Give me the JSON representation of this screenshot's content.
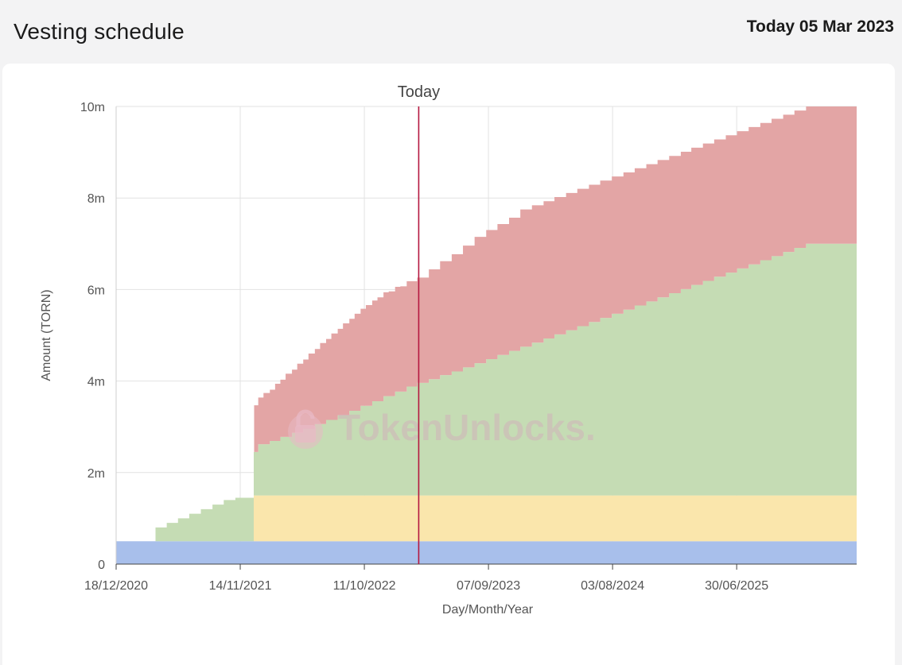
{
  "page": {
    "title": "Vesting schedule",
    "today_text": "Today 05 Mar 2023"
  },
  "watermark": "TokenUnlocks.",
  "chart_data": {
    "type": "area",
    "stacked": true,
    "step": true,
    "xlabel": "Day/Month/Year",
    "ylabel": "Amount (TORN)",
    "x_start": "2020-12-18",
    "x_end": "2026-05-16",
    "x_ticks": [
      "2020-12-18",
      "2021-11-14",
      "2022-10-11",
      "2023-09-07",
      "2024-08-03",
      "2025-06-30"
    ],
    "x_tick_labels": [
      "18/12/2020",
      "14/11/2021",
      "11/10/2022",
      "07/09/2023",
      "03/08/2024",
      "30/06/2025"
    ],
    "ylim": [
      0,
      10000000
    ],
    "y_ticks": [
      0,
      2000000,
      4000000,
      6000000,
      8000000,
      10000000
    ],
    "y_tick_labels": [
      "0",
      "2m",
      "4m",
      "6m",
      "8m",
      "10m"
    ],
    "grid": true,
    "legend": "none",
    "marker": {
      "date": "2023-03-05",
      "label": "Today",
      "color": "#b5173f"
    },
    "series": [
      {
        "color": "#a8bfeb",
        "points": [
          [
            "2020-12-18",
            500000
          ],
          [
            "2026-05-16",
            500000
          ]
        ]
      },
      {
        "color": "#fae6ac",
        "points": [
          [
            "2020-12-18",
            0
          ],
          [
            "2021-04-02",
            0
          ],
          [
            "2021-12-20",
            1000000
          ],
          [
            "2026-05-16",
            1000000
          ]
        ]
      },
      {
        "color": "#c5dcb4",
        "points": [
          [
            "2020-12-18",
            0
          ],
          [
            "2021-04-02",
            300000
          ],
          [
            "2021-05-02",
            400000
          ],
          [
            "2021-06-01",
            500000
          ],
          [
            "2021-07-01",
            600000
          ],
          [
            "2021-08-01",
            700000
          ],
          [
            "2021-09-01",
            800000
          ],
          [
            "2021-10-01",
            900000
          ],
          [
            "2021-11-01",
            950000
          ],
          [
            "2021-12-01",
            950000
          ],
          [
            "2022-01-01",
            1120000
          ],
          [
            "2022-02-01",
            1190000
          ],
          [
            "2022-03-01",
            1280000
          ],
          [
            "2022-04-01",
            1370000
          ],
          [
            "2022-05-01",
            1460000
          ],
          [
            "2022-06-01",
            1560000
          ],
          [
            "2022-07-01",
            1650000
          ],
          [
            "2022-08-01",
            1750000
          ],
          [
            "2022-09-01",
            1850000
          ],
          [
            "2022-10-01",
            1960000
          ],
          [
            "2022-11-01",
            2060000
          ],
          [
            "2022-12-01",
            2170000
          ],
          [
            "2023-01-01",
            2270000
          ],
          [
            "2023-02-01",
            2380000
          ],
          [
            "2023-03-01",
            2460000
          ],
          [
            "2023-04-01",
            2540000
          ],
          [
            "2023-05-01",
            2630000
          ],
          [
            "2023-06-01",
            2710000
          ],
          [
            "2023-07-01",
            2800000
          ],
          [
            "2023-08-01",
            2890000
          ],
          [
            "2023-09-01",
            2980000
          ],
          [
            "2023-10-01",
            3070000
          ],
          [
            "2023-11-01",
            3160000
          ],
          [
            "2023-12-01",
            3250000
          ],
          [
            "2024-01-01",
            3340000
          ],
          [
            "2024-02-01",
            3430000
          ],
          [
            "2024-03-01",
            3520000
          ],
          [
            "2024-04-01",
            3610000
          ],
          [
            "2024-05-01",
            3700000
          ],
          [
            "2024-06-01",
            3790000
          ],
          [
            "2024-07-01",
            3880000
          ],
          [
            "2024-08-01",
            3970000
          ],
          [
            "2024-09-01",
            4060000
          ],
          [
            "2024-10-01",
            4150000
          ],
          [
            "2024-11-01",
            4240000
          ],
          [
            "2024-12-01",
            4330000
          ],
          [
            "2025-01-01",
            4420000
          ],
          [
            "2025-02-01",
            4510000
          ],
          [
            "2025-03-01",
            4600000
          ],
          [
            "2025-04-01",
            4690000
          ],
          [
            "2025-05-01",
            4780000
          ],
          [
            "2025-06-01",
            4870000
          ],
          [
            "2025-07-01",
            4960000
          ],
          [
            "2025-08-01",
            5050000
          ],
          [
            "2025-09-01",
            5140000
          ],
          [
            "2025-10-01",
            5230000
          ],
          [
            "2025-11-01",
            5320000
          ],
          [
            "2025-12-01",
            5410000
          ],
          [
            "2026-01-01",
            5500000
          ],
          [
            "2026-05-16",
            5500000
          ]
        ]
      },
      {
        "color": "#e3a5a5",
        "points": [
          [
            "2020-12-18",
            0
          ],
          [
            "2021-12-20",
            0
          ],
          [
            "2021-12-21",
            1020000
          ],
          [
            "2022-01-15",
            1120000
          ],
          [
            "2022-02-15",
            1250000
          ],
          [
            "2022-03-15",
            1380000
          ],
          [
            "2022-04-15",
            1510000
          ],
          [
            "2022-05-15",
            1640000
          ],
          [
            "2022-06-15",
            1770000
          ],
          [
            "2022-07-15",
            1890000
          ],
          [
            "2022-08-15",
            2010000
          ],
          [
            "2022-09-15",
            2120000
          ],
          [
            "2022-10-15",
            2200000
          ],
          [
            "2022-11-15",
            2270000
          ],
          [
            "2022-12-15",
            2290000
          ],
          [
            "2023-01-15",
            2300000
          ],
          [
            "2023-03-05",
            2300000
          ],
          [
            "2023-04-01",
            2400000
          ],
          [
            "2023-05-01",
            2490000
          ],
          [
            "2023-06-01",
            2560000
          ],
          [
            "2023-07-01",
            2660000
          ],
          [
            "2023-08-01",
            2760000
          ],
          [
            "2023-09-01",
            2820000
          ],
          [
            "2023-10-01",
            2860000
          ],
          [
            "2023-11-01",
            2910000
          ],
          [
            "2023-12-01",
            3000000
          ],
          [
            "2024-01-01",
            3000000
          ],
          [
            "2024-02-01",
            3000000
          ],
          [
            "2024-03-01",
            3000000
          ],
          [
            "2024-04-01",
            3000000
          ],
          [
            "2024-05-01",
            3000000
          ],
          [
            "2024-06-01",
            3000000
          ],
          [
            "2024-07-01",
            3000000
          ],
          [
            "2024-08-01",
            3000000
          ],
          [
            "2024-09-01",
            3000000
          ],
          [
            "2024-10-01",
            3000000
          ],
          [
            "2024-11-01",
            3000000
          ],
          [
            "2024-12-01",
            3000000
          ],
          [
            "2025-01-01",
            3000000
          ],
          [
            "2025-02-01",
            3000000
          ],
          [
            "2025-03-01",
            3000000
          ],
          [
            "2025-04-01",
            3000000
          ],
          [
            "2025-05-01",
            3000000
          ],
          [
            "2025-06-01",
            3000000
          ],
          [
            "2025-07-01",
            3000000
          ],
          [
            "2025-08-01",
            3000000
          ],
          [
            "2025-09-01",
            3000000
          ],
          [
            "2025-10-01",
            3000000
          ],
          [
            "2025-11-01",
            3000000
          ],
          [
            "2025-12-01",
            3000000
          ],
          [
            "2026-01-01",
            3000000
          ],
          [
            "2026-05-16",
            3000000
          ]
        ]
      }
    ]
  }
}
